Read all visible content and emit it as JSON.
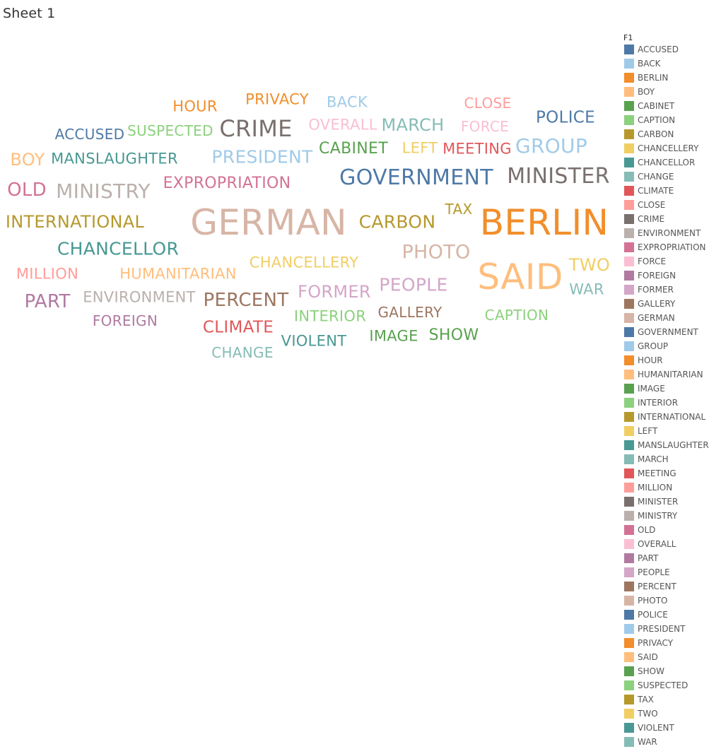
{
  "sheet": {
    "title": "Sheet 1"
  },
  "chart_data": {
    "type": "word-cloud",
    "legend_title": "F1",
    "legend_placement": "right",
    "words": [
      {
        "text": "ACCUSED",
        "size": 20,
        "color": "#4e79a7"
      },
      {
        "text": "BACK",
        "size": 21,
        "color": "#a0cbe8"
      },
      {
        "text": "BERLIN",
        "size": 50,
        "color": "#f28e2b"
      },
      {
        "text": "BOY",
        "size": 24,
        "color": "#ffbe7d"
      },
      {
        "text": "CABINET",
        "size": 22,
        "color": "#59a14f"
      },
      {
        "text": "CAPTION",
        "size": 20,
        "color": "#8cd17d"
      },
      {
        "text": "CARBON",
        "size": 25,
        "color": "#b6992d"
      },
      {
        "text": "CHANCELLERY",
        "size": 21,
        "color": "#f1ce63"
      },
      {
        "text": "CHANCELLOR",
        "size": 25,
        "color": "#499894"
      },
      {
        "text": "CHANGE",
        "size": 20,
        "color": "#86bcb6"
      },
      {
        "text": "CLIMATE",
        "size": 23,
        "color": "#e15759"
      },
      {
        "text": "CLOSE",
        "size": 20,
        "color": "#ff9d9a"
      },
      {
        "text": "CRIME",
        "size": 32,
        "color": "#79706e"
      },
      {
        "text": "ENVIRONMENT",
        "size": 21,
        "color": "#bab0ac"
      },
      {
        "text": "EXPROPRIATION",
        "size": 22,
        "color": "#d37295"
      },
      {
        "text": "FORCE",
        "size": 20,
        "color": "#fabfd2"
      },
      {
        "text": "FOREIGN",
        "size": 20,
        "color": "#b07aa1"
      },
      {
        "text": "FORMER",
        "size": 24,
        "color": "#d4a6c8"
      },
      {
        "text": "GALLERY",
        "size": 20,
        "color": "#9d7660"
      },
      {
        "text": "GERMAN",
        "size": 50,
        "color": "#d7b5a6"
      },
      {
        "text": "GOVERNMENT",
        "size": 30,
        "color": "#4e79a7"
      },
      {
        "text": "GROUP",
        "size": 28,
        "color": "#a0cbe8"
      },
      {
        "text": "HOUR",
        "size": 21,
        "color": "#f28e2b"
      },
      {
        "text": "HUMANITARIAN",
        "size": 21,
        "color": "#ffbe7d"
      },
      {
        "text": "IMAGE",
        "size": 21,
        "color": "#59a14f"
      },
      {
        "text": "INTERIOR",
        "size": 21,
        "color": "#8cd17d"
      },
      {
        "text": "INTERNATIONAL",
        "size": 24,
        "color": "#b6992d"
      },
      {
        "text": "LEFT",
        "size": 21,
        "color": "#f1ce63"
      },
      {
        "text": "MANSLAUGHTER",
        "size": 21,
        "color": "#499894"
      },
      {
        "text": "MARCH",
        "size": 24,
        "color": "#86bcb6"
      },
      {
        "text": "MEETING",
        "size": 21,
        "color": "#e15759"
      },
      {
        "text": "MILLION",
        "size": 21,
        "color": "#ff9d9a"
      },
      {
        "text": "MINISTER",
        "size": 30,
        "color": "#79706e"
      },
      {
        "text": "MINISTRY",
        "size": 28,
        "color": "#bab0ac"
      },
      {
        "text": "OLD",
        "size": 26,
        "color": "#d37295"
      },
      {
        "text": "OVERALL",
        "size": 21,
        "color": "#fabfd2"
      },
      {
        "text": "PART",
        "size": 26,
        "color": "#b07aa1"
      },
      {
        "text": "PEOPLE",
        "size": 25,
        "color": "#d4a6c8"
      },
      {
        "text": "PERCENT",
        "size": 26,
        "color": "#9d7660"
      },
      {
        "text": "PHOTO",
        "size": 27,
        "color": "#d7b5a6"
      },
      {
        "text": "POLICE",
        "size": 23,
        "color": "#4e79a7"
      },
      {
        "text": "PRESIDENT",
        "size": 25,
        "color": "#a0cbe8"
      },
      {
        "text": "PRIVACY",
        "size": 21,
        "color": "#f28e2b"
      },
      {
        "text": "SAID",
        "size": 50,
        "color": "#ffbe7d"
      },
      {
        "text": "SHOW",
        "size": 22,
        "color": "#59a14f"
      },
      {
        "text": "SUSPECTED",
        "size": 20,
        "color": "#8cd17d"
      },
      {
        "text": "TAX",
        "size": 20,
        "color": "#b6992d"
      },
      {
        "text": "TWO",
        "size": 24,
        "color": "#f1ce63"
      },
      {
        "text": "VIOLENT",
        "size": 21,
        "color": "#499894"
      },
      {
        "text": "WAR",
        "size": 21,
        "color": "#86bcb6"
      }
    ]
  }
}
